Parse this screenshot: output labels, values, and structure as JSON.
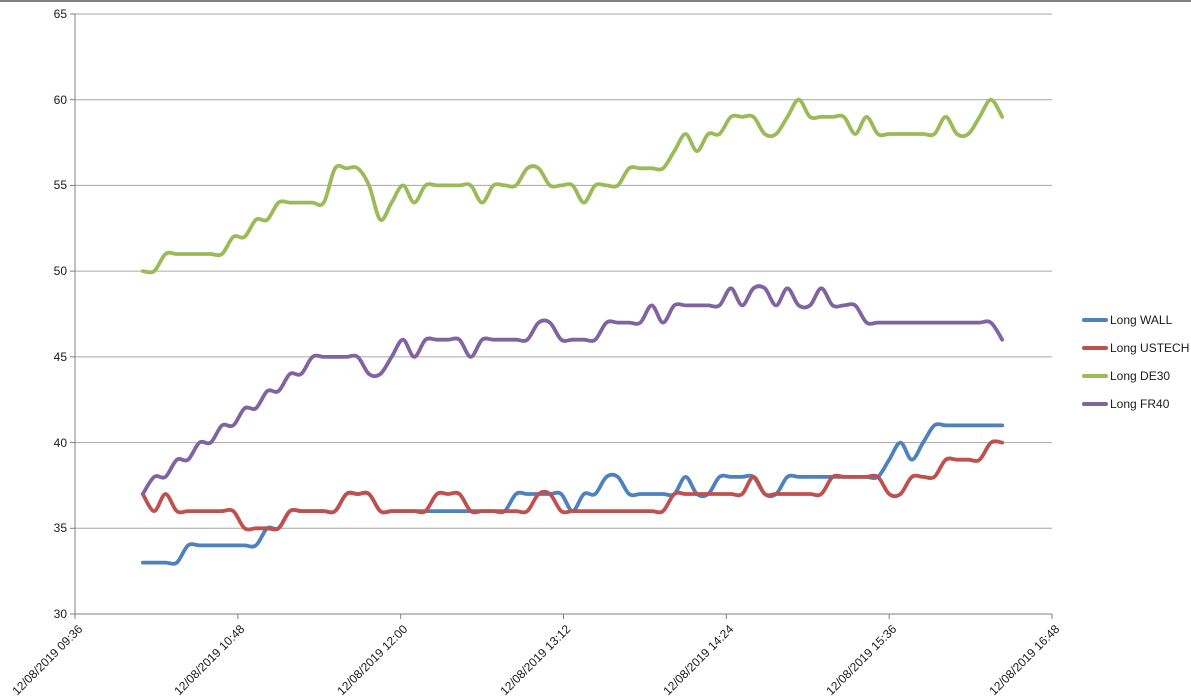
{
  "chart_data": {
    "type": "line",
    "title": "",
    "xlabel": "",
    "ylabel": "",
    "grid": true,
    "legend_position": "right",
    "smoothed_lines": true,
    "y_axis": {
      "min": 30,
      "max": 65,
      "step": 5,
      "tick_labels": [
        "30",
        "35",
        "40",
        "45",
        "50",
        "55",
        "60",
        "65"
      ]
    },
    "x_axis": {
      "tick_labels": [
        "12/08/2019 09:36",
        "12/08/2019 10:48",
        "12/08/2019 12:00",
        "12/08/2019 13:12",
        "12/08/2019 14:24",
        "12/08/2019 15:36",
        "12/08/2019 16:48"
      ],
      "tick_minutes_after_start": [
        0,
        72,
        144,
        216,
        288,
        360,
        432
      ]
    },
    "x_minutes_after_0936": [
      30,
      35,
      40,
      45,
      50,
      55,
      60,
      65,
      70,
      75,
      80,
      85,
      90,
      95,
      100,
      105,
      110,
      115,
      120,
      125,
      130,
      135,
      140,
      145,
      150,
      155,
      160,
      165,
      170,
      175,
      180,
      185,
      190,
      195,
      200,
      205,
      210,
      215,
      220,
      225,
      230,
      235,
      240,
      245,
      250,
      255,
      260,
      265,
      270,
      275,
      280,
      285,
      290,
      295,
      300,
      305,
      310,
      315,
      320,
      325,
      330,
      335,
      340,
      345,
      350,
      355,
      360,
      365,
      370,
      375,
      380,
      385,
      390,
      395,
      400,
      405,
      410
    ],
    "series": [
      {
        "name": "Long WALL",
        "color": "#4F81BD",
        "values": [
          33,
          33,
          33,
          33,
          34,
          34,
          34,
          34,
          34,
          34,
          34,
          35,
          35,
          36,
          36,
          36,
          36,
          36,
          37,
          37,
          37,
          36,
          36,
          36,
          36,
          36,
          36,
          36,
          36,
          36,
          36,
          36,
          36,
          37,
          37,
          37,
          37,
          37,
          36,
          37,
          37,
          38,
          38,
          37,
          37,
          37,
          37,
          37,
          38,
          37,
          37,
          38,
          38,
          38,
          38,
          37,
          37,
          38,
          38,
          38,
          38,
          38,
          38,
          38,
          38,
          38,
          39,
          40,
          39,
          40,
          41,
          41,
          41,
          41,
          41,
          41,
          41
        ]
      },
      {
        "name": "Long USTECH",
        "color": "#C0504D",
        "values": [
          37,
          36,
          37,
          36,
          36,
          36,
          36,
          36,
          36,
          35,
          35,
          35,
          35,
          36,
          36,
          36,
          36,
          36,
          37,
          37,
          37,
          36,
          36,
          36,
          36,
          36,
          37,
          37,
          37,
          36,
          36,
          36,
          36,
          36,
          36,
          37,
          37,
          36,
          36,
          36,
          36,
          36,
          36,
          36,
          36,
          36,
          36,
          37,
          37,
          37,
          37,
          37,
          37,
          37,
          38,
          37,
          37,
          37,
          37,
          37,
          37,
          38,
          38,
          38,
          38,
          38,
          37,
          37,
          38,
          38,
          38,
          39,
          39,
          39,
          39,
          40,
          40
        ]
      },
      {
        "name": "Long DE30",
        "color": "#9BBB59",
        "values": [
          50,
          50,
          51,
          51,
          51,
          51,
          51,
          51,
          52,
          52,
          53,
          53,
          54,
          54,
          54,
          54,
          54,
          56,
          56,
          56,
          55,
          53,
          54,
          55,
          54,
          55,
          55,
          55,
          55,
          55,
          54,
          55,
          55,
          55,
          56,
          56,
          55,
          55,
          55,
          54,
          55,
          55,
          55,
          56,
          56,
          56,
          56,
          57,
          58,
          57,
          58,
          58,
          59,
          59,
          59,
          58,
          58,
          59,
          60,
          59,
          59,
          59,
          59,
          58,
          59,
          58,
          58,
          58,
          58,
          58,
          58,
          59,
          58,
          58,
          59,
          60,
          59
        ]
      },
      {
        "name": "Long FR40",
        "color": "#8064A2",
        "values": [
          37,
          38,
          38,
          39,
          39,
          40,
          40,
          41,
          41,
          42,
          42,
          43,
          43,
          44,
          44,
          45,
          45,
          45,
          45,
          45,
          44,
          44,
          45,
          46,
          45,
          46,
          46,
          46,
          46,
          45,
          46,
          46,
          46,
          46,
          46,
          47,
          47,
          46,
          46,
          46,
          46,
          47,
          47,
          47,
          47,
          48,
          47,
          48,
          48,
          48,
          48,
          48,
          49,
          48,
          49,
          49,
          48,
          49,
          48,
          48,
          49,
          48,
          48,
          48,
          47,
          47,
          47,
          47,
          47,
          47,
          47,
          47,
          47,
          47,
          47,
          47,
          46
        ]
      }
    ],
    "theme": {
      "background": "#FFFFFF",
      "axis_line": "#808080",
      "gridline": "#A6A6A6",
      "tick_text": "#1A1A1A",
      "top_border": "#7F7F7F"
    }
  }
}
